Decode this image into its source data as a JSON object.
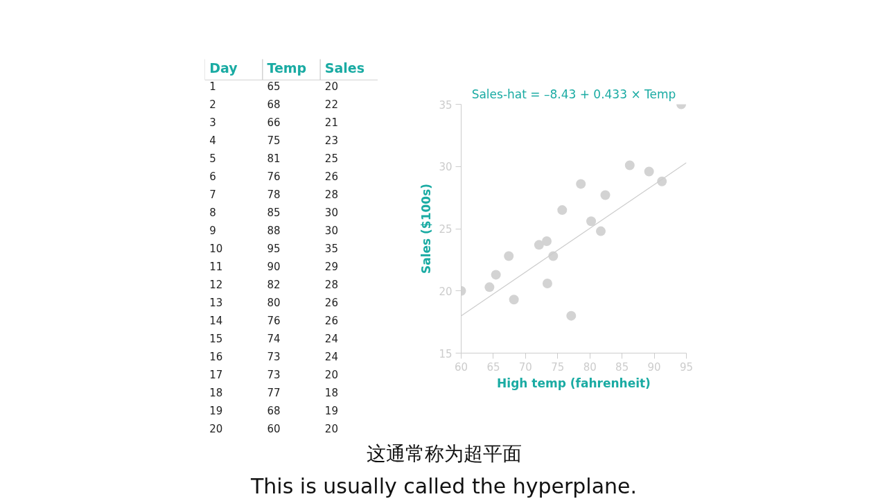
{
  "chart_data": [
    {
      "type": "other",
      "annotations": [
        "Day",
        "Temp",
        "Sales",
        "1",
        "65",
        "20",
        "2",
        "68",
        "22",
        "3",
        "66",
        "21",
        "4",
        "75",
        "23",
        "5",
        "81",
        "25",
        "6",
        "76",
        "26",
        "7",
        "78",
        "28",
        "8",
        "85",
        "30",
        "9",
        "88",
        "30",
        "10",
        "95",
        "35",
        "11",
        "90",
        "29",
        "12",
        "82",
        "28",
        "13",
        "80",
        "26",
        "14",
        "76",
        "26",
        "15",
        "74",
        "24",
        "16",
        "73",
        "24",
        "17",
        "73",
        "20",
        "18",
        "77",
        "18",
        "19",
        "68",
        "19",
        "20",
        "60",
        "20"
      ]
    },
    {
      "type": "scatter",
      "title": "Sales-hat = –8.43 + 0.433 × Temp",
      "xlabel": "High temp (fahrenheit)",
      "ylabel": "Sales ($100s)",
      "xlim": [
        60,
        95
      ],
      "ylim": [
        15,
        35
      ],
      "xticks": [
        60,
        65,
        70,
        75,
        80,
        85,
        90,
        95
      ],
      "yticks": [
        15,
        20,
        25,
        30,
        35
      ],
      "grid": false,
      "series": [
        {
          "color": "#d3d3d3",
          "marker": "circle",
          "x": [
            60,
            64.4,
            65.4,
            67.4,
            68.2,
            72.1,
            73.3,
            73.4,
            74.3,
            75.7,
            77.1,
            78.6,
            80.2,
            81.7,
            82.4,
            86.2,
            89.2,
            91.2,
            94.2
          ],
          "values": [
            20,
            20.3,
            21.3,
            22.8,
            19.3,
            23.7,
            24.0,
            20.6,
            22.8,
            26.5,
            18.0,
            28.6,
            25.6,
            24.8,
            27.7,
            30.1,
            29.6,
            28.8,
            35.0
          ]
        },
        {
          "type": "line",
          "color": "#cccccc",
          "x": [
            60,
            95
          ],
          "values": [
            18.0,
            30.3
          ]
        }
      ],
      "annotations": [
        "这通常称为超平面",
        "This is usually called the hyperplane."
      ]
    }
  ]
}
